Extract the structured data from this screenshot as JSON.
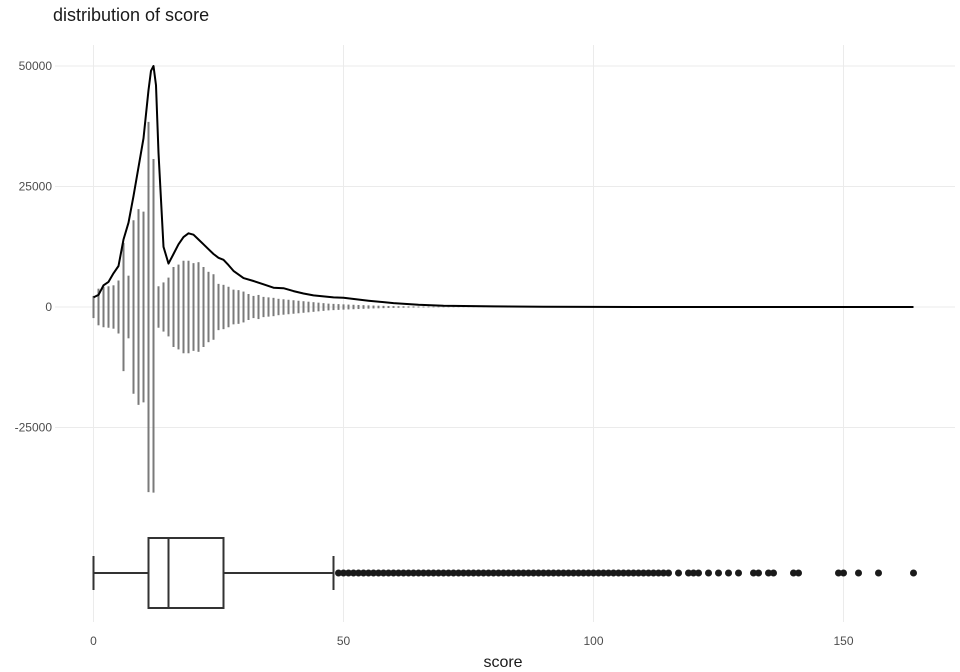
{
  "chart_data": {
    "type": "density-histogram-boxplot",
    "title": "distribution of score",
    "xlabel": "score",
    "ylabel": "",
    "xlim": [
      -3,
      172
    ],
    "ylim": [
      -48000,
      54000
    ],
    "grid": true,
    "x_ticks": [
      {
        "value": 0,
        "label": "0"
      },
      {
        "value": 50,
        "label": "50"
      },
      {
        "value": 100,
        "label": "100"
      },
      {
        "value": 150,
        "label": "150"
      }
    ],
    "y_ticks": [
      {
        "value": 50000,
        "label": "50000"
      },
      {
        "value": 25000,
        "label": "25000"
      },
      {
        "value": 0,
        "label": "0"
      },
      {
        "value": -25000,
        "label": "-25000"
      }
    ],
    "histogram_bins": {
      "x": [
        0,
        1,
        2,
        3,
        4,
        5,
        6,
        7,
        8,
        9,
        10,
        11,
        12,
        13,
        14,
        15,
        16,
        17,
        18,
        19,
        20,
        21,
        22,
        23,
        24,
        25,
        26,
        27,
        28,
        29,
        30,
        31,
        32,
        33,
        34,
        35,
        36,
        37,
        38,
        39,
        40,
        41,
        42,
        43,
        44,
        45,
        46,
        47,
        48,
        49,
        50,
        51,
        52,
        53,
        54,
        55,
        56,
        57,
        58,
        59,
        60,
        61,
        62,
        63,
        64,
        65,
        66,
        67,
        68,
        69,
        70,
        71,
        72,
        73,
        74,
        75,
        76,
        77,
        78,
        79,
        80
      ],
      "count": [
        2300,
        3800,
        4200,
        4300,
        4500,
        5500,
        13300,
        6500,
        18000,
        20300,
        19800,
        38400,
        30700,
        4300,
        5100,
        6100,
        8300,
        8800,
        9600,
        9600,
        9100,
        9300,
        8300,
        7300,
        6800,
        4800,
        4600,
        4200,
        3600,
        3500,
        3200,
        2700,
        2300,
        2500,
        2100,
        2000,
        1900,
        1700,
        1600,
        1500,
        1400,
        1300,
        1200,
        1100,
        1000,
        900,
        800,
        700,
        650,
        600,
        550,
        500,
        460,
        420,
        380,
        340,
        300,
        270,
        240,
        210,
        190,
        170,
        150,
        130,
        120,
        100,
        90,
        80,
        70,
        60,
        55,
        50,
        45,
        40,
        35,
        30,
        25,
        20,
        18,
        15,
        12
      ],
      "density_spikes": [
        {
          "x": 12,
          "value": -38500
        }
      ]
    },
    "density_curve": {
      "x": [
        0,
        1,
        2,
        3,
        4,
        5,
        6,
        7,
        8,
        9,
        10,
        11,
        11.5,
        12,
        12.5,
        13,
        14,
        15,
        16,
        17,
        18,
        19,
        20,
        21,
        22,
        23,
        24,
        25,
        26,
        27,
        28,
        30,
        32,
        34,
        36,
        38,
        40,
        42,
        44,
        46,
        48,
        50,
        55,
        60,
        65,
        70,
        80,
        90,
        100,
        120,
        140,
        164
      ],
      "value": [
        2000,
        2500,
        4500,
        5200,
        7000,
        8500,
        14000,
        17500,
        23000,
        29000,
        35000,
        45000,
        49000,
        50000,
        46000,
        32000,
        12500,
        9000,
        11000,
        13000,
        14500,
        15300,
        15000,
        14000,
        13000,
        12000,
        11000,
        10200,
        9800,
        8700,
        7500,
        6000,
        5400,
        4700,
        4000,
        3900,
        3300,
        2800,
        2400,
        2200,
        2000,
        1900,
        1300,
        800,
        450,
        250,
        120,
        60,
        30,
        10,
        4,
        0
      ]
    },
    "boxplot": {
      "y_position": -55000,
      "whisker_low": 0,
      "q1": 11,
      "median": 15,
      "q3": 26,
      "whisker_high": 48,
      "outliers": [
        49,
        50,
        51,
        52,
        53,
        54,
        55,
        56,
        57,
        58,
        59,
        60,
        61,
        62,
        63,
        64,
        65,
        66,
        67,
        68,
        69,
        70,
        71,
        72,
        73,
        74,
        75,
        76,
        77,
        78,
        79,
        80,
        81,
        82,
        83,
        84,
        85,
        86,
        87,
        88,
        89,
        90,
        91,
        92,
        93,
        94,
        95,
        96,
        97,
        98,
        99,
        100,
        101,
        102,
        103,
        104,
        105,
        106,
        107,
        108,
        109,
        110,
        111,
        112,
        113,
        114,
        115,
        117,
        119,
        120,
        121,
        123,
        125,
        127,
        129,
        132,
        133,
        135,
        136,
        140,
        141,
        149,
        150,
        153,
        157,
        164
      ]
    }
  }
}
